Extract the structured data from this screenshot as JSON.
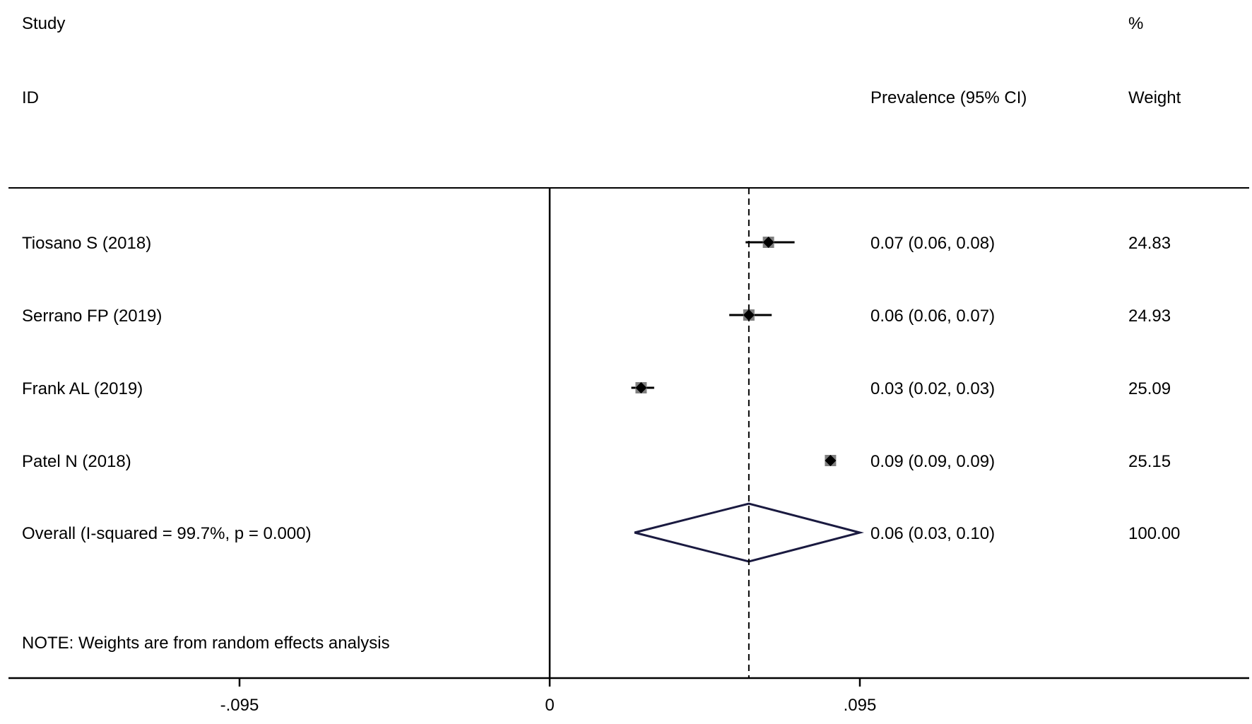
{
  "chart_data": {
    "type": "forest",
    "header": {
      "study_top": "Study",
      "study_bottom": "ID",
      "effect_label": "Prevalence (95% CI)",
      "weight_top": "%",
      "weight_bottom": "Weight"
    },
    "studies": [
      {
        "name": "Tiosano S (2018)",
        "estimate": 0.067,
        "lower": 0.06,
        "upper": 0.075,
        "ci_text": "0.07 (0.06, 0.08)",
        "weight": "24.83"
      },
      {
        "name": "Serrano FP (2019)",
        "estimate": 0.061,
        "lower": 0.055,
        "upper": 0.068,
        "ci_text": "0.06 (0.06, 0.07)",
        "weight": "24.93"
      },
      {
        "name": "Frank AL (2019)",
        "estimate": 0.028,
        "lower": 0.025,
        "upper": 0.032,
        "ci_text": "0.03 (0.02, 0.03)",
        "weight": "25.09"
      },
      {
        "name": "Patel N (2018)",
        "estimate": 0.086,
        "lower": 0.085,
        "upper": 0.087,
        "ci_text": "0.09 (0.09, 0.09)",
        "weight": "25.15"
      }
    ],
    "overall": {
      "name": "Overall  (I-squared = 99.7%, p = 0.000)",
      "estimate": 0.061,
      "lower": 0.026,
      "upper": 0.095,
      "ci_text": "0.06 (0.03, 0.10)",
      "weight": "100.00"
    },
    "note": "NOTE: Weights are from random effects analysis",
    "x_ticks": [
      {
        "value": -0.095,
        "label": "-.095"
      },
      {
        "value": 0,
        "label": "0"
      },
      {
        "value": 0.095,
        "label": ".095"
      }
    ],
    "xlim": [
      -0.165,
      0.215
    ],
    "null_line": 0,
    "colors": {
      "marker": "#000000",
      "box": "#808080",
      "diamond": "#1a1a40",
      "axis": "#000000"
    }
  }
}
